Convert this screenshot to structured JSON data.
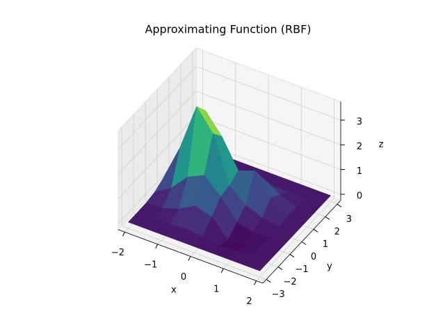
{
  "chart_data": {
    "type": "surface",
    "title": "Approximating Function (RBF)",
    "xlabel": "x",
    "ylabel": "y",
    "zlabel": "z",
    "colormap": "viridis",
    "x": [
      -2,
      -1.5,
      -1,
      -0.5,
      0,
      0.5,
      1,
      1.5,
      2
    ],
    "y": [
      -3,
      -2.25,
      -1.5,
      -0.75,
      0,
      0.75,
      1.5,
      2.25,
      3
    ],
    "z": [
      [
        0,
        0,
        0,
        0,
        0,
        0,
        0,
        0,
        0
      ],
      [
        0,
        0,
        0.02,
        0.07,
        0.02,
        -0.11,
        -0.08,
        -0.01,
        0
      ],
      [
        0.01,
        0.05,
        0.26,
        0.64,
        0.42,
        -0.25,
        -0.23,
        -0.03,
        0
      ],
      [
        0.08,
        0.48,
        1.18,
        1.49,
        0.87,
        0.08,
        -0.06,
        -0.01,
        0
      ],
      [
        0.29,
        1.75,
        3.65,
        2.8,
        0.93,
        0.38,
        0.12,
        0.01,
        0
      ],
      [
        0.26,
        1.5,
        3.1,
        2.3,
        1.16,
        1.4,
        0.58,
        0.05,
        0
      ],
      [
        0.05,
        0.3,
        0.6,
        0.47,
        0.42,
        0.69,
        0.3,
        0.03,
        0
      ],
      [
        0,
        0.02,
        0.03,
        0.02,
        0.02,
        0.04,
        0.02,
        0,
        0
      ],
      [
        0,
        0,
        0,
        0,
        0,
        0,
        0,
        0,
        0
      ]
    ],
    "xlim": [
      -2.2,
      2.2
    ],
    "ylim": [
      -3.3,
      3.3
    ],
    "zlim": [
      -0.25,
      3.75
    ],
    "xticks": [
      {
        "value": -2,
        "label": "−2"
      },
      {
        "value": -1,
        "label": "−1"
      },
      0,
      1,
      2
    ],
    "yticks": [
      {
        "value": -3,
        "label": "−3"
      },
      {
        "value": -2,
        "label": "−2"
      },
      {
        "value": -1,
        "label": "−1"
      },
      0,
      1,
      2,
      3
    ],
    "zticks": [
      0,
      1,
      2,
      3
    ],
    "grid": true
  }
}
